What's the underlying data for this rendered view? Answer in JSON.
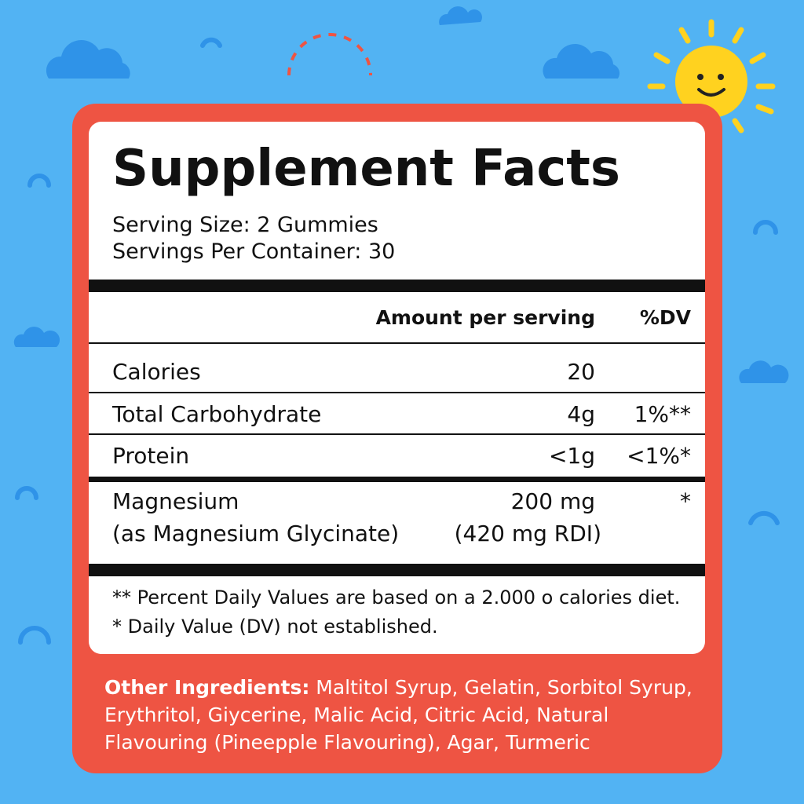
{
  "label": {
    "title": "Supplement Facts",
    "serving_size": "Serving Size: 2 Gummies",
    "servings_per_container": "Servings Per Container: 30",
    "header": {
      "amount": "Amount per serving",
      "dv": "%DV"
    },
    "rows": [
      {
        "name": "Calories",
        "amount": "20"
      },
      {
        "name": "Total Carbohydrate",
        "amount": "4g",
        "dv": "1%**"
      },
      {
        "name": "Protein",
        "amount": "<1g",
        "dv": "<1%*"
      },
      {
        "name": "Magnesium",
        "subname": "(as Magnesium Glycinate)",
        "amount": "200 mg",
        "amount_note": "(420 mg RDI)",
        "dv": "*"
      }
    ],
    "footnotes": [
      "** Percent Daily Values are based on a 2.000 o calories diet.",
      "* Daily Value (DV) not established."
    ],
    "other_ingredients": {
      "label": "Other Ingredients:",
      "text": "Maltitol Syrup, Gelatin, Sorbitol Syrup, Erythritol, Giycerine, Malic Acid, Citric Acid, Natural Flavouring (Pineepple Flavouring), Agar, Turmeric"
    }
  }
}
